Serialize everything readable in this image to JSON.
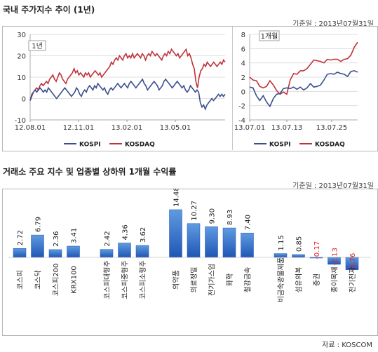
{
  "section1": {
    "title": "국내 주가지수 추이 (1년)",
    "date": "기준일 : 2013년07월31일"
  },
  "section2": {
    "title": "거래소 주요 지수 및 업종별 상하위 1개월 수익률",
    "date": "기준일 : 2013년07월31일"
  },
  "source": "자료 : KOSCOM",
  "colors": {
    "kospi": "#3a4f8c",
    "kosdaq": "#c0323a",
    "bar_top": "#5f9be0",
    "bar_bottom": "#1f56b5",
    "negative_label": "#e02020"
  },
  "chart_data": [
    {
      "type": "line",
      "title": "1년",
      "x_ticks": [
        "12.08.01",
        "12.11.01",
        "13.02.01",
        "13.05.01"
      ],
      "y_ticks": [
        "30",
        "20",
        "10",
        "0",
        "-10"
      ],
      "ylim": [
        -10,
        30
      ],
      "grid": true,
      "series": [
        {
          "name": "KOSPI",
          "values": [
            -1,
            2,
            3,
            4,
            3,
            4,
            5,
            4,
            3,
            4,
            3,
            5,
            4,
            3,
            2,
            1,
            0,
            1,
            2,
            3,
            4,
            5,
            4,
            3,
            2,
            1,
            2,
            3,
            5,
            4,
            2,
            1,
            3,
            4,
            3,
            5,
            6,
            5,
            4,
            6,
            5,
            7,
            6,
            5,
            4,
            5,
            3,
            2,
            4,
            5,
            4,
            5,
            6,
            7,
            6,
            5,
            6,
            7,
            6,
            5,
            7,
            8,
            7,
            6,
            5,
            6,
            7,
            8,
            9,
            7,
            6,
            4,
            5,
            6,
            7,
            8,
            7,
            6,
            4,
            5,
            6,
            8,
            9,
            8,
            7,
            6,
            5,
            6,
            7,
            8,
            7,
            6,
            5,
            6,
            4,
            3,
            4,
            6,
            5,
            4,
            3,
            4,
            3,
            -2,
            -4,
            -3,
            -5,
            -3,
            -2,
            -1,
            0,
            -1,
            0,
            1,
            2,
            1,
            2,
            1,
            2
          ]
        },
        {
          "name": "KOSDAQ",
          "values": [
            -1,
            1,
            3,
            4,
            5,
            4,
            6,
            7,
            6,
            7,
            8,
            7,
            9,
            10,
            11,
            9,
            8,
            10,
            12,
            11,
            9,
            8,
            7,
            9,
            10,
            11,
            12,
            14,
            12,
            13,
            11,
            12,
            11,
            10,
            12,
            11,
            12,
            10,
            11,
            12,
            13,
            12,
            11,
            12,
            10,
            11,
            12,
            13,
            14,
            15,
            17,
            16,
            18,
            19,
            18,
            20,
            19,
            18,
            20,
            21,
            19,
            20,
            19,
            21,
            19,
            20,
            21,
            20,
            19,
            21,
            20,
            18,
            20,
            21,
            20,
            22,
            21,
            20,
            21,
            20,
            19,
            18,
            20,
            21,
            20,
            22,
            21,
            23,
            22,
            21,
            20,
            21,
            19,
            20,
            21,
            22,
            23,
            20,
            21,
            19,
            16,
            14,
            8,
            5,
            10,
            13,
            14,
            16,
            15,
            17,
            16,
            15,
            16,
            17,
            16,
            15,
            16,
            17,
            16,
            18,
            17
          ]
        }
      ]
    },
    {
      "type": "line",
      "title": "1개월",
      "x_ticks": [
        "13.07.01",
        "13.07.13",
        "13.07.25"
      ],
      "y_ticks": [
        "8",
        "6",
        "4",
        "2",
        "0",
        "-2",
        "-4"
      ],
      "ylim": [
        -4,
        8
      ],
      "grid": true,
      "series": [
        {
          "name": "KOSPI",
          "values": [
            0.6,
            0.5,
            -0.6,
            -1.3,
            -0.6,
            -1.5,
            -2.1,
            -1.0,
            -0.4,
            -0.3,
            0.4,
            0.5,
            0.4,
            0.6,
            0.3,
            0.6,
            0.2,
            0.5,
            1.1,
            0.6,
            0.7,
            0.9,
            1.6,
            2.4,
            2.5,
            2.4,
            2.7,
            2.5,
            2.4,
            2.1,
            2.8,
            2.9,
            2.7
          ]
        },
        {
          "name": "KOSDAQ",
          "values": [
            2.0,
            1.6,
            1.5,
            0.7,
            0.5,
            0.7,
            1.5,
            0.9,
            0.1,
            -0.4,
            -0.1,
            -0.4,
            1.6,
            2.5,
            2.4,
            2.9,
            2.9,
            3.2,
            3.8,
            4.4,
            4.3,
            4.2,
            4.0,
            4.5,
            4.4,
            4.5,
            4.5,
            4.2,
            4.5,
            4.6,
            5.1,
            6.2,
            6.9
          ]
        }
      ],
      "legend": [
        "KOSPI",
        "KOSDAQ"
      ]
    },
    {
      "type": "bar",
      "categories": [
        "코스피",
        "코스닥",
        "코스피200",
        "KRX100",
        "코스피대형주",
        "코스피중형주",
        "코스피소형주",
        "의약품",
        "의료정밀",
        "전기가스업",
        "화학",
        "철강금속",
        "비금속광물제품",
        "섬유의복",
        "증권",
        "종이목재",
        "전기전자"
      ],
      "values": [
        2.72,
        6.79,
        2.36,
        3.41,
        2.42,
        4.36,
        3.62,
        14.48,
        10.27,
        9.3,
        8.93,
        7.4,
        1.15,
        0.85,
        -0.17,
        -2.13,
        -3.76
      ],
      "value_labels": [
        "2.72",
        "6.79",
        "2.36",
        "3.41",
        "2.42",
        "4.36",
        "3.62",
        "14.48",
        "10.27",
        "9.30",
        "8.93",
        "7.40",
        "1.15",
        "0.85",
        "-0.17",
        "-2.13",
        "-3.76"
      ],
      "groups": [
        4,
        3,
        5,
        5
      ]
    }
  ]
}
